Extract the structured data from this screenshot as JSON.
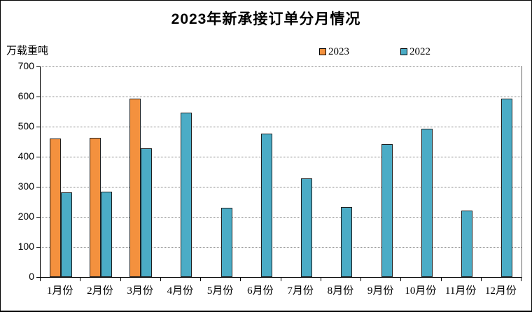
{
  "title": "2023年新承接订单分月情况",
  "y_axis_label": "万载重吨",
  "legend": [
    {
      "label": "2023",
      "color": "#F4913E"
    },
    {
      "label": "2022",
      "color": "#4BACC6"
    }
  ],
  "chart_data": {
    "type": "bar",
    "title": "2023年新承接订单分月情况",
    "ylabel": "万载重吨",
    "xlabel": "",
    "ylim": [
      0,
      700
    ],
    "ytick_step": 100,
    "grid": "horizontal-dotted",
    "legend_position": "top",
    "categories": [
      "1月份",
      "2月份",
      "3月份",
      "4月份",
      "5月份",
      "6月份",
      "7月份",
      "8月份",
      "9月份",
      "10月份",
      "11月份",
      "12月份"
    ],
    "series": [
      {
        "name": "2023",
        "color": "#F4913E",
        "values": [
          460,
          462,
          593,
          null,
          null,
          null,
          null,
          null,
          null,
          null,
          null,
          null
        ]
      },
      {
        "name": "2022",
        "color": "#4BACC6",
        "values": [
          281,
          283,
          428,
          547,
          230,
          477,
          327,
          232,
          441,
          493,
          220,
          592
        ]
      }
    ]
  }
}
